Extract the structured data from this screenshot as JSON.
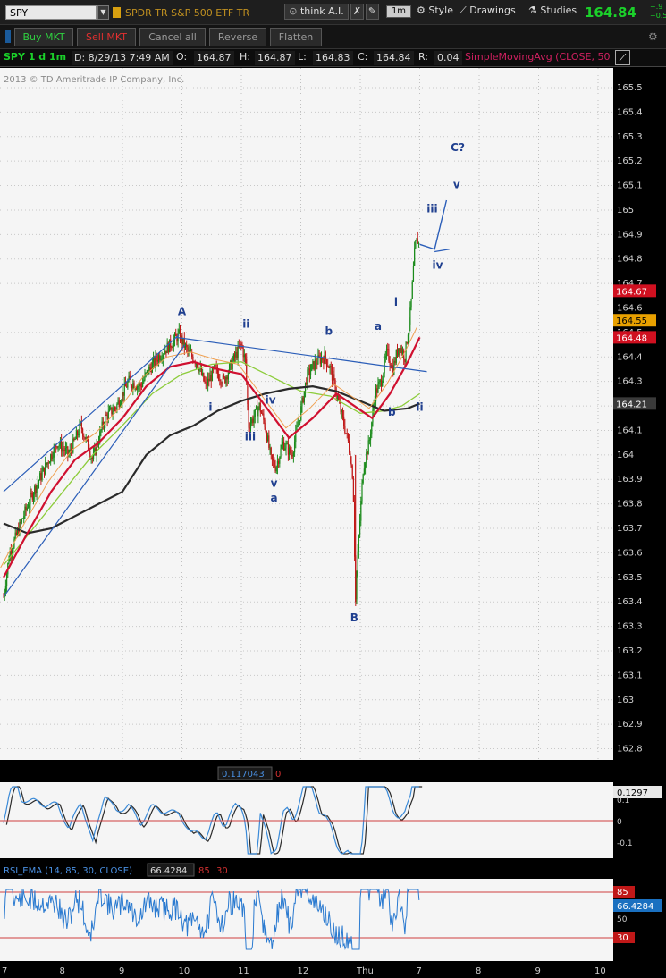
{
  "header": {
    "symbol": "SPY",
    "description": "SPDR TR S&P 500 ETF TR",
    "think_label": "think A.I.",
    "interval": "1m",
    "style_label": "Style",
    "drawings_label": "Drawings",
    "studies_label": "Studies",
    "last_price": "164.84",
    "change_top": "+.9",
    "change_bottom": "+0.5"
  },
  "order_bar": {
    "buy_label": "Buy MKT",
    "sell_label": "Sell MKT",
    "cancel_label": "Cancel all",
    "reverse_label": "Reverse",
    "flatten_label": "Flatten"
  },
  "info_bar": {
    "chart_label": "SPY 1 d 1m",
    "date": "D: 8/29/13 7:49 AM",
    "o_label": "O:",
    "open": "164.87",
    "h_label": "H:",
    "high": "164.87",
    "l_label": "L:",
    "low": "164.83",
    "c_label": "C:",
    "close": "164.84",
    "r_label": "R:",
    "range": "0.04",
    "study": "SimpleMovingAvg (CLOSE, 50"
  },
  "copyright": "2013 © TD Ameritrade IP Company, Inc.",
  "price_axis": {
    "ticks": [
      "165.5",
      "165.4",
      "165.3",
      "165.2",
      "165.1",
      "165",
      "164.9",
      "164.8",
      "164.7",
      "164.6",
      "164.5",
      "164.4",
      "164.3",
      "164.2",
      "164.1",
      "164",
      "163.9",
      "163.8",
      "163.7",
      "163.6",
      "163.5",
      "163.4",
      "163.3",
      "163.2",
      "163.1",
      "163",
      "162.9",
      "162.8"
    ],
    "markers": [
      {
        "value": "164.67",
        "color": "#d01020"
      },
      {
        "value": "164.55",
        "color": "#e8a000"
      },
      {
        "value": "164.48",
        "color": "#d01020"
      },
      {
        "value": "164.21",
        "color": "#3a3a3a"
      }
    ]
  },
  "time_axis": [
    "7",
    "8",
    "9",
    "10",
    "11",
    "12",
    "Thu",
    "7",
    "8",
    "9",
    "10"
  ],
  "wave_labels": [
    {
      "text": "A",
      "price": 164.57,
      "day": 10.0
    },
    {
      "text": "ii",
      "price": 164.52,
      "day": 11.08
    },
    {
      "text": "i",
      "price": 164.18,
      "day": 10.48
    },
    {
      "text": "iii",
      "price": 164.06,
      "day": 11.15
    },
    {
      "text": "iv",
      "price": 164.21,
      "day": 11.49
    },
    {
      "text": "v",
      "price": 163.87,
      "day": 11.55
    },
    {
      "text": "a",
      "price": 163.81,
      "day": 11.55
    },
    {
      "text": "b",
      "price": 164.49,
      "day": 12.47
    },
    {
      "text": "B",
      "price": 163.32,
      "day": 12.9
    },
    {
      "text": "a",
      "price": 164.51,
      "day": 13.3
    },
    {
      "text": "b",
      "price": 164.16,
      "day": 13.53
    },
    {
      "text": "i",
      "price": 164.61,
      "day": 13.6
    },
    {
      "text": "ii",
      "price": 164.18,
      "day": 14.0
    },
    {
      "text": "iii",
      "price": 164.99,
      "day": 14.21
    },
    {
      "text": "iv",
      "price": 164.76,
      "day": 14.3
    },
    {
      "text": "v",
      "price": 165.09,
      "day": 14.62
    },
    {
      "text": "C?",
      "price": 165.24,
      "day": 14.64
    }
  ],
  "macd_panel": {
    "value": "0.117043",
    "zero": "0",
    "last": "0.1297",
    "axis": [
      "0.1",
      "0",
      "-0.1"
    ]
  },
  "rsi_panel": {
    "title": "RSI_EMA (14, 85, 30, CLOSE)",
    "value": "66.4284",
    "overbought": "85",
    "oversold": "30",
    "axis": [
      "50"
    ]
  },
  "chart_data": {
    "type": "candlestick",
    "symbol": "SPY",
    "interval": "1m",
    "ylim": [
      162.77,
      165.57
    ],
    "studies": [
      "SimpleMovingAvg (CLOSE, 50"
    ],
    "ohlc_last": {
      "open": 164.87,
      "high": 164.87,
      "low": 164.83,
      "close": 164.84
    },
    "price_path": [
      [
        7.0,
        163.42
      ],
      [
        7.1,
        163.6
      ],
      [
        7.2,
        163.66
      ],
      [
        7.35,
        163.76
      ],
      [
        7.5,
        163.85
      ],
      [
        7.7,
        163.95
      ],
      [
        7.9,
        164.05
      ],
      [
        8.1,
        164.0
      ],
      [
        8.3,
        164.12
      ],
      [
        8.5,
        163.98
      ],
      [
        8.7,
        164.15
      ],
      [
        8.9,
        164.2
      ],
      [
        9.1,
        164.3
      ],
      [
        9.3,
        164.28
      ],
      [
        9.45,
        164.35
      ],
      [
        9.6,
        164.4
      ],
      [
        9.8,
        164.45
      ],
      [
        9.95,
        164.49
      ],
      [
        10.1,
        164.42
      ],
      [
        10.25,
        164.38
      ],
      [
        10.4,
        164.28
      ],
      [
        10.55,
        164.35
      ],
      [
        10.7,
        164.3
      ],
      [
        10.85,
        164.38
      ],
      [
        11.0,
        164.45
      ],
      [
        11.07,
        164.38
      ],
      [
        11.12,
        164.12
      ],
      [
        11.2,
        164.15
      ],
      [
        11.3,
        164.2
      ],
      [
        11.4,
        164.12
      ],
      [
        11.5,
        163.98
      ],
      [
        11.58,
        163.95
      ],
      [
        11.7,
        164.05
      ],
      [
        11.85,
        164.0
      ],
      [
        12.0,
        164.18
      ],
      [
        12.1,
        164.32
      ],
      [
        12.25,
        164.38
      ],
      [
        12.4,
        164.4
      ],
      [
        12.5,
        164.35
      ],
      [
        12.6,
        164.25
      ],
      [
        12.7,
        164.15
      ],
      [
        12.8,
        164.05
      ],
      [
        12.88,
        163.9
      ],
      [
        12.92,
        163.4
      ],
      [
        12.96,
        163.6
      ],
      [
        13.05,
        163.95
      ],
      [
        13.15,
        164.05
      ],
      [
        13.25,
        164.25
      ],
      [
        13.35,
        164.3
      ],
      [
        13.45,
        164.42
      ],
      [
        13.55,
        164.35
      ],
      [
        13.65,
        164.45
      ],
      [
        13.75,
        164.4
      ],
      [
        13.85,
        164.6
      ],
      [
        13.92,
        164.85
      ],
      [
        13.96,
        164.88
      ],
      [
        14.0,
        164.85
      ]
    ],
    "sma_black": [
      [
        7.0,
        163.72
      ],
      [
        7.4,
        163.68
      ],
      [
        7.8,
        163.7
      ],
      [
        8.2,
        163.75
      ],
      [
        8.6,
        163.8
      ],
      [
        9.0,
        163.85
      ],
      [
        9.4,
        164.0
      ],
      [
        9.8,
        164.08
      ],
      [
        10.2,
        164.12
      ],
      [
        10.6,
        164.18
      ],
      [
        11.0,
        164.22
      ],
      [
        11.4,
        164.25
      ],
      [
        11.8,
        164.27
      ],
      [
        12.2,
        164.28
      ],
      [
        12.6,
        164.26
      ],
      [
        13.0,
        164.22
      ],
      [
        13.4,
        164.18
      ],
      [
        13.8,
        164.19
      ],
      [
        14.0,
        164.21
      ]
    ],
    "sma_red": [
      [
        7.0,
        163.5
      ],
      [
        7.4,
        163.68
      ],
      [
        7.8,
        163.85
      ],
      [
        8.2,
        163.98
      ],
      [
        8.6,
        164.05
      ],
      [
        9.0,
        164.15
      ],
      [
        9.4,
        164.28
      ],
      [
        9.8,
        164.36
      ],
      [
        10.2,
        164.38
      ],
      [
        10.6,
        164.35
      ],
      [
        11.0,
        164.33
      ],
      [
        11.4,
        164.2
      ],
      [
        11.8,
        164.07
      ],
      [
        12.2,
        164.15
      ],
      [
        12.6,
        164.25
      ],
      [
        12.9,
        164.2
      ],
      [
        13.2,
        164.15
      ],
      [
        13.5,
        164.25
      ],
      [
        13.8,
        164.38
      ],
      [
        14.0,
        164.48
      ]
    ],
    "sma_green": [
      [
        7.0,
        163.55
      ],
      [
        7.5,
        163.7
      ],
      [
        8.0,
        163.85
      ],
      [
        8.5,
        164.0
      ],
      [
        9.0,
        164.12
      ],
      [
        9.5,
        164.25
      ],
      [
        10.0,
        164.33
      ],
      [
        10.5,
        164.37
      ],
      [
        11.0,
        164.38
      ],
      [
        11.5,
        164.32
      ],
      [
        12.0,
        164.26
      ],
      [
        12.5,
        164.24
      ],
      [
        13.0,
        164.17
      ],
      [
        13.4,
        164.18
      ],
      [
        13.7,
        164.2
      ],
      [
        14.0,
        164.25
      ]
    ],
    "trend_lines": [
      {
        "from": [
          7.0,
          163.85
        ],
        "to": [
          9.95,
          164.49
        ]
      },
      {
        "from": [
          7.0,
          163.42
        ],
        "to": [
          10.05,
          164.45
        ]
      },
      {
        "from": [
          9.9,
          164.48
        ],
        "to": [
          14.12,
          164.34
        ]
      },
      {
        "from": [
          14.25,
          164.83
        ],
        "to": [
          14.5,
          164.84
        ]
      }
    ],
    "projection": [
      [
        14.0,
        164.86
      ],
      [
        14.25,
        164.84
      ],
      [
        14.45,
        165.04
      ]
    ]
  }
}
